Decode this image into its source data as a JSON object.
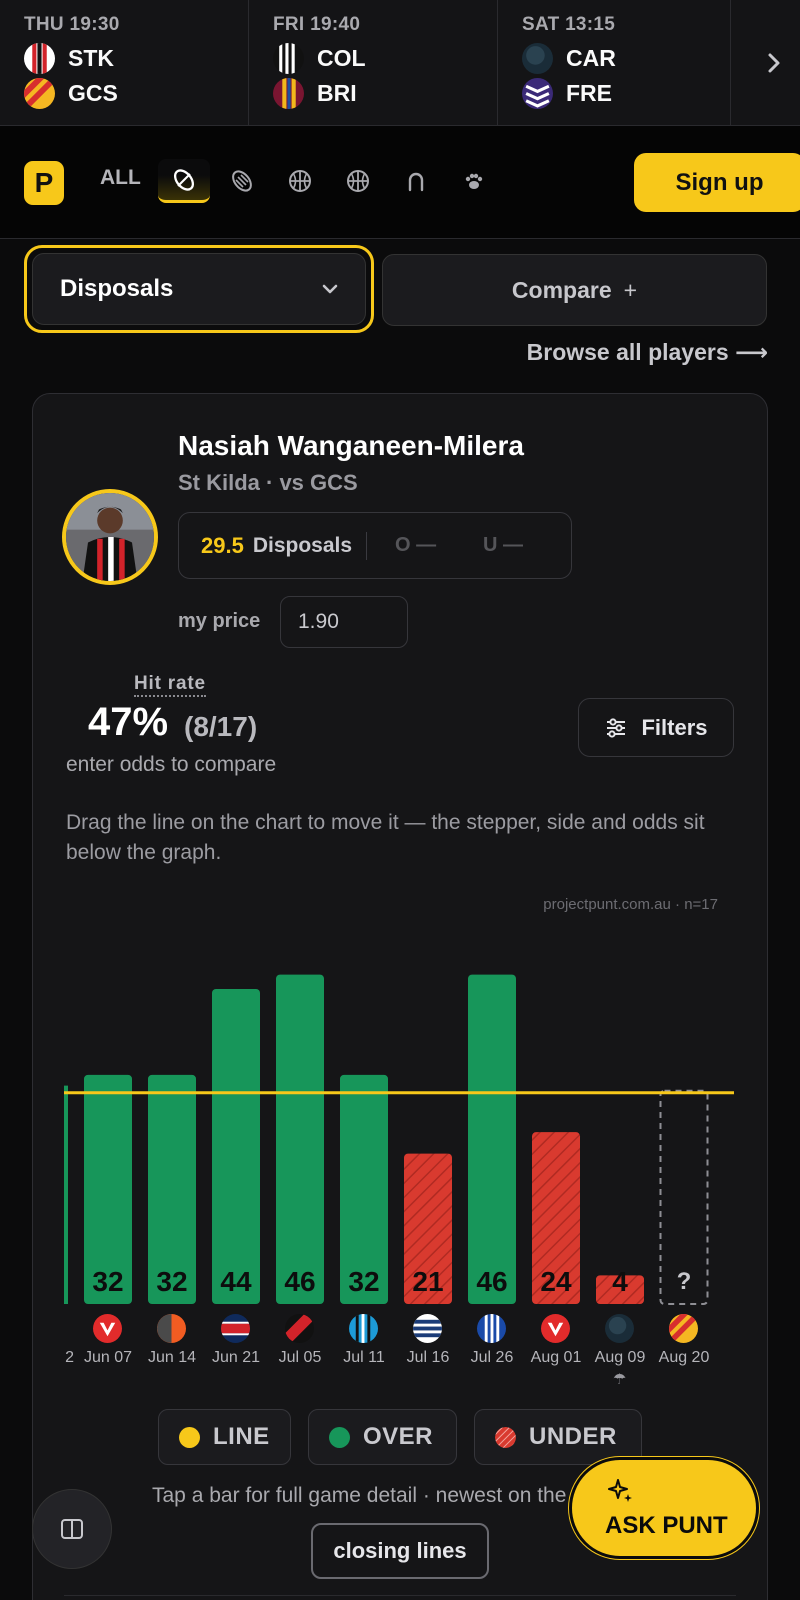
{
  "fixtures": [
    {
      "when": "THU 19:30",
      "home": "STK",
      "away": "GCS"
    },
    {
      "when": "FRI 19:40",
      "home": "COL",
      "away": "BRI"
    },
    {
      "when": "SAT 13:15",
      "home": "CAR",
      "away": "FRE"
    }
  ],
  "nav": {
    "brand": "P",
    "all_label": "ALL",
    "sports": [
      "afl-icon",
      "rugby-icon",
      "basketball-icon",
      "soccer-icon",
      "horseshoe-icon",
      "paw-icon"
    ],
    "signup_label": "Sign up"
  },
  "controls": {
    "market": "Disposals",
    "compare_label": "Compare",
    "compare_plus": "+",
    "browse_label": "Browse all players ⟶"
  },
  "player": {
    "name": "Nasiah Wanganeen-Milera",
    "team_line": "St Kilda · vs GCS",
    "line": "29.5",
    "market": "Disposals",
    "over": "O —",
    "under": "U —",
    "myprice_label": "my price",
    "myprice_value": "1.90"
  },
  "hitrate": {
    "label": "Hit rate",
    "pct": "47%",
    "frac": "(8/17)",
    "sub": "enter odds to compare"
  },
  "filters_label": "Filters",
  "hint": "Drag the line on the chart to move it — the stepper, side and odds sit below the graph.",
  "watermark": "projectpunt.com.au · n=17",
  "chart_data": {
    "type": "bar",
    "line": 29.5,
    "ylim": [
      0,
      50
    ],
    "categories": [
      "Jun 07",
      "Jun 14",
      "Jun 21",
      "Jul 05",
      "Jul 11",
      "Jul 16",
      "Jul 26",
      "Aug 01",
      "Aug 09",
      "Aug 20"
    ],
    "values": [
      32,
      32,
      44,
      46,
      32,
      21,
      46,
      24,
      4,
      null
    ],
    "results": [
      "over",
      "over",
      "over",
      "over",
      "over",
      "under",
      "over",
      "under",
      "under",
      "upcoming"
    ],
    "opponents": [
      "ESS",
      "GWS",
      "MEL",
      "ESS",
      "COL",
      "GEE",
      "NM",
      "ESS",
      "CAR",
      "GCS"
    ],
    "partial_left_label": "2",
    "upcoming_label": "?",
    "annotations": {
      "Aug 09": "rain-icon"
    }
  },
  "legend": {
    "line": "LINE",
    "over": "OVER",
    "under": "UNDER"
  },
  "colors": {
    "accent": "#f7c81a",
    "over": "#17965a",
    "under": "#d93a2f",
    "background": "#0b0b0c"
  },
  "tapnote": "Tap a bar for full game detail · newest on the right",
  "closing_label": "closing lines",
  "askpunt_label": "ASK PUNT"
}
